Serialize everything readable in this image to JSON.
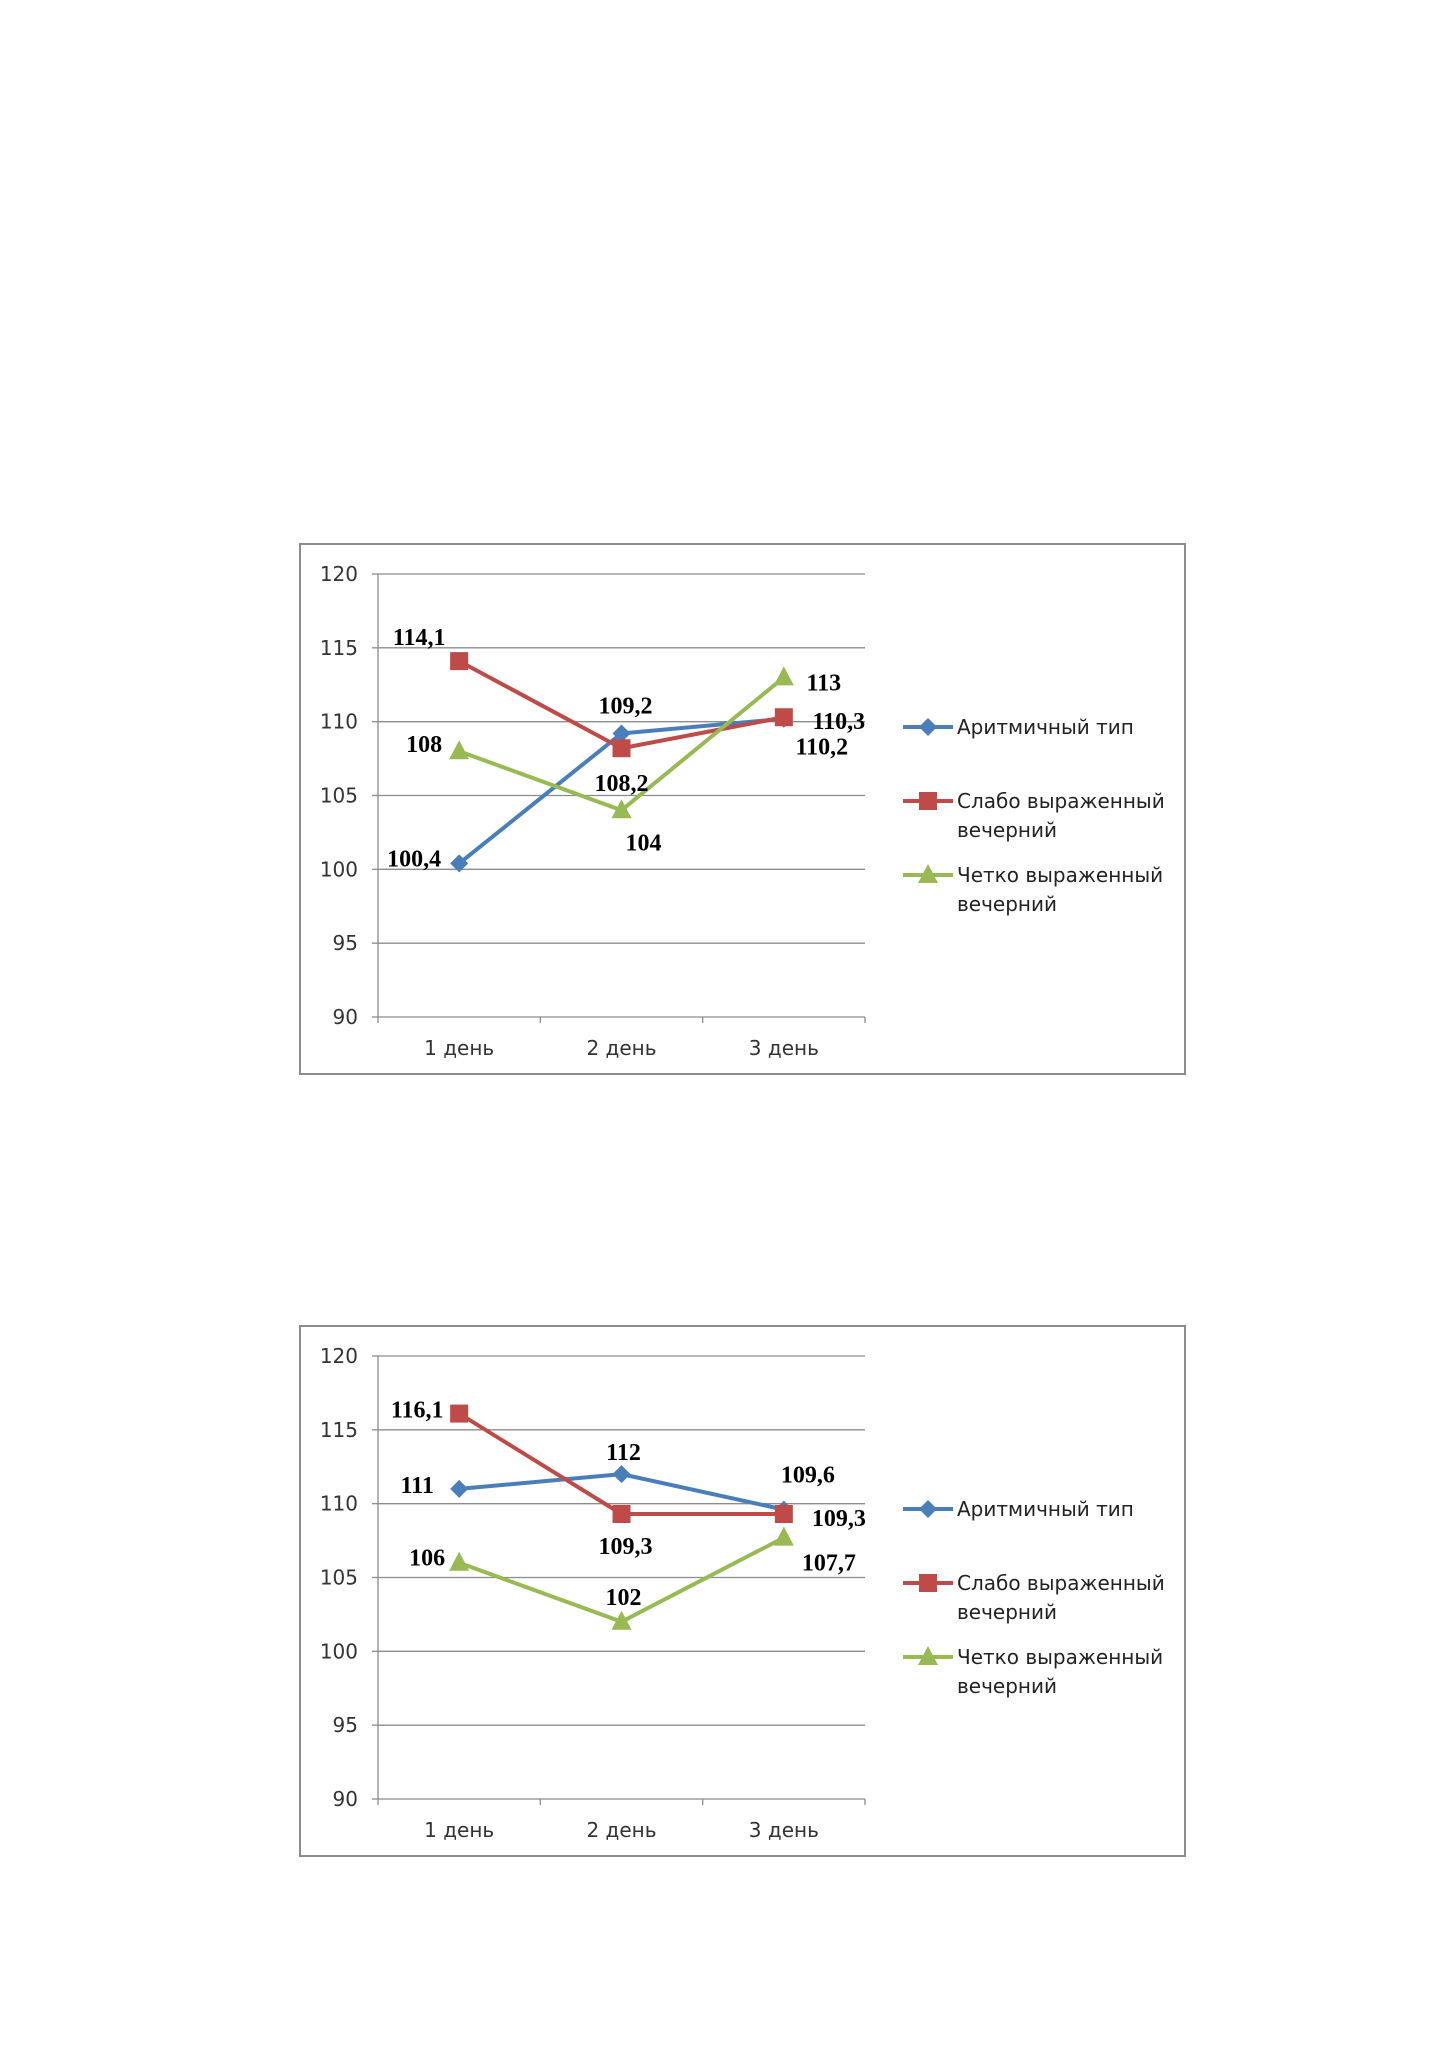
{
  "chart_data": [
    {
      "type": "line",
      "categories": [
        "1 день",
        "2 день",
        "3 день"
      ],
      "ylim": [
        90,
        120
      ],
      "yticks": [
        "120",
        "115",
        "110",
        "105",
        "100",
        "95",
        "90"
      ],
      "grid": true,
      "legend_position": "right",
      "series": [
        {
          "name": "Аритмичный тип",
          "values": [
            100.4,
            109.2,
            110.2
          ],
          "labels": [
            "100,4",
            "109,2",
            "110,2"
          ],
          "color": "#4a7ebb",
          "marker": "diamond"
        },
        {
          "name": "Слабо выраженный вечерний",
          "values": [
            114.1,
            108.2,
            110.3
          ],
          "labels": [
            "114,1",
            "108,2",
            "110,3"
          ],
          "color": "#be4b48",
          "marker": "square"
        },
        {
          "name": "Четко выраженный вечерний",
          "values": [
            108,
            104,
            113
          ],
          "labels": [
            "108",
            "104",
            "113"
          ],
          "color": "#98b954",
          "marker": "triangle"
        }
      ]
    },
    {
      "type": "line",
      "categories": [
        "1 день",
        "2 день",
        "3 день"
      ],
      "ylim": [
        90,
        120
      ],
      "yticks": [
        "120",
        "115",
        "110",
        "105",
        "100",
        "95",
        "90"
      ],
      "grid": true,
      "legend_position": "right",
      "series": [
        {
          "name": "Аритмичный тип",
          "values": [
            111,
            112,
            109.6
          ],
          "labels": [
            "111",
            "112",
            "109,6"
          ],
          "color": "#4a7ebb",
          "marker": "diamond"
        },
        {
          "name": "Слабо выраженный вечерний",
          "values": [
            116.1,
            109.3,
            109.3
          ],
          "labels": [
            "116,1",
            "109,3",
            "109,3"
          ],
          "color": "#be4b48",
          "marker": "square"
        },
        {
          "name": "Четко выраженный вечерний",
          "values": [
            106,
            102,
            107.7
          ],
          "labels": [
            "106",
            "102",
            "107,7"
          ],
          "color": "#98b954",
          "marker": "triangle"
        }
      ]
    }
  ]
}
